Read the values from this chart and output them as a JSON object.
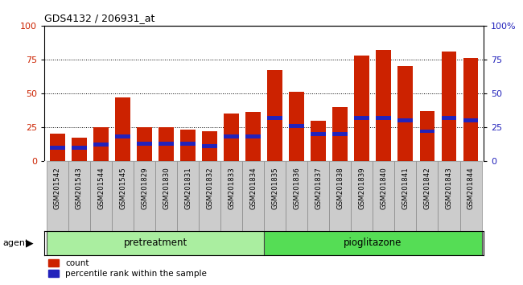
{
  "title": "GDS4132 / 206931_at",
  "samples": [
    "GSM201542",
    "GSM201543",
    "GSM201544",
    "GSM201545",
    "GSM201829",
    "GSM201830",
    "GSM201831",
    "GSM201832",
    "GSM201833",
    "GSM201834",
    "GSM201835",
    "GSM201836",
    "GSM201837",
    "GSM201838",
    "GSM201839",
    "GSM201840",
    "GSM201841",
    "GSM201842",
    "GSM201843",
    "GSM201844"
  ],
  "count_values": [
    20,
    17,
    25,
    47,
    25,
    25,
    23,
    22,
    35,
    36,
    67,
    51,
    30,
    40,
    78,
    82,
    70,
    37,
    81,
    76
  ],
  "percentile_values": [
    10,
    10,
    12,
    18,
    13,
    13,
    13,
    11,
    18,
    18,
    32,
    26,
    20,
    20,
    32,
    32,
    30,
    22,
    32,
    30
  ],
  "bar_color": "#cc2200",
  "blue_color": "#2222bb",
  "cell_color": "#cccccc",
  "cell_border": "#888888",
  "groups": [
    {
      "label": "pretreatment",
      "start": 0,
      "end": 10,
      "color": "#aaeea0"
    },
    {
      "label": "pioglitazone",
      "start": 10,
      "end": 20,
      "color": "#55dd55"
    }
  ],
  "ylim": [
    0,
    100
  ],
  "yticks": [
    0,
    25,
    50,
    75,
    100
  ],
  "agent_label": "agent",
  "legend_count": "count",
  "legend_pct": "percentile rank within the sample",
  "title_fontsize": 9,
  "bar_width": 0.7
}
